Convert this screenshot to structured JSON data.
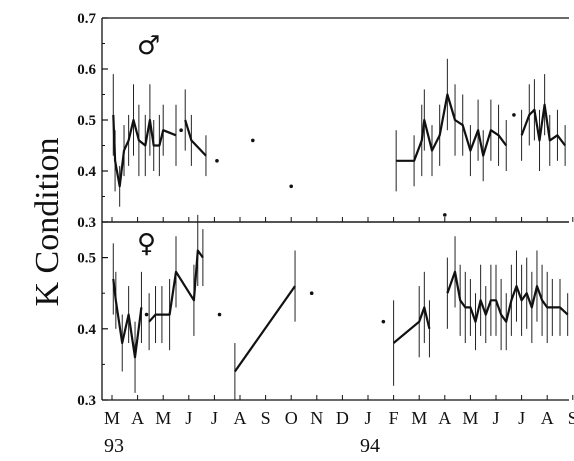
{
  "chart_data": {
    "type": "line",
    "ylabel": "K Condition",
    "x_ticks": [
      "M",
      "A",
      "M",
      "J",
      "J",
      "A",
      "S",
      "O",
      "N",
      "D",
      "J",
      "F",
      "M",
      "A",
      "M",
      "J",
      "J",
      "A",
      "S"
    ],
    "year_labels": [
      {
        "month_index": 0,
        "label": "93"
      },
      {
        "month_index": 10,
        "label": "94"
      }
    ],
    "panels": [
      {
        "symbol": "♂",
        "ylim": [
          0.3,
          0.7
        ],
        "yticks": [
          "0.3",
          "0.4",
          "0.5",
          "0.6",
          "0.7"
        ],
        "segments": [
          [
            [
              0.05,
              0.51,
              0.08
            ],
            [
              0.12,
              0.42,
              0.06
            ],
            [
              0.3,
              0.37,
              0.04
            ],
            [
              0.47,
              0.44,
              0.05
            ],
            [
              0.65,
              0.46,
              0.05
            ],
            [
              0.84,
              0.5,
              0.07
            ],
            [
              1.05,
              0.46,
              0.07
            ],
            [
              1.3,
              0.45,
              0.06
            ],
            [
              1.48,
              0.5,
              0.07
            ],
            [
              1.63,
              0.45,
              0.05
            ],
            [
              1.85,
              0.45,
              0.06
            ],
            [
              2.0,
              0.48,
              0.05
            ],
            [
              2.5,
              0.47,
              0.06
            ]
          ],
          [
            [
              2.86,
              0.5,
              0.06
            ],
            [
              3.1,
              0.46,
              0.05
            ],
            [
              3.67,
              0.43,
              0.04
            ]
          ],
          [
            [
              11.1,
              0.42,
              0.06
            ],
            [
              11.8,
              0.42,
              0.05
            ],
            [
              12.1,
              0.46,
              0.07
            ],
            [
              12.2,
              0.5,
              0.06
            ],
            [
              12.5,
              0.44,
              0.05
            ],
            [
              12.8,
              0.47,
              0.06
            ],
            [
              13.1,
              0.55,
              0.07
            ],
            [
              13.4,
              0.5,
              0.07
            ],
            [
              13.7,
              0.49,
              0.06
            ],
            [
              14.0,
              0.44,
              0.05
            ],
            [
              14.3,
              0.48,
              0.06
            ],
            [
              14.5,
              0.43,
              0.05
            ],
            [
              14.8,
              0.48,
              0.06
            ],
            [
              15.1,
              0.47,
              0.06
            ],
            [
              15.4,
              0.45,
              0.05
            ]
          ],
          [
            [
              16.0,
              0.47,
              0.05
            ],
            [
              16.3,
              0.51,
              0.06
            ],
            [
              16.5,
              0.52,
              0.06
            ],
            [
              16.7,
              0.46,
              0.06
            ],
            [
              16.9,
              0.53,
              0.06
            ],
            [
              17.1,
              0.46,
              0.05
            ],
            [
              17.4,
              0.47,
              0.05
            ],
            [
              17.7,
              0.45,
              0.04
            ]
          ]
        ],
        "points": [
          [
            2.7,
            0.48
          ],
          [
            4.1,
            0.42
          ],
          [
            5.5,
            0.46
          ],
          [
            7.0,
            0.37
          ],
          [
            15.7,
            0.51
          ]
        ]
      },
      {
        "symbol": "♀",
        "ylim": [
          0.3,
          0.55
        ],
        "yticks": [
          "0.3",
          "0.4",
          "0.5"
        ],
        "segments": [
          [
            [
              0.05,
              0.47,
              0.05
            ],
            [
              0.15,
              0.44,
              0.04
            ],
            [
              0.4,
              0.38,
              0.04
            ],
            [
              0.65,
              0.42,
              0.04
            ],
            [
              0.9,
              0.36,
              0.05
            ],
            [
              1.15,
              0.43,
              0.05
            ]
          ],
          [
            [
              1.45,
              0.41,
              0.04
            ],
            [
              1.7,
              0.42,
              0.04
            ],
            [
              1.95,
              0.42,
              0.04
            ],
            [
              2.25,
              0.42,
              0.05
            ],
            [
              2.5,
              0.48,
              0.05
            ],
            [
              3.2,
              0.44,
              0.05
            ],
            [
              3.35,
              0.51,
              0.05
            ],
            [
              3.55,
              0.5,
              0.04
            ]
          ],
          [
            [
              4.8,
              0.34,
              0.04
            ],
            [
              7.15,
              0.46,
              0.05
            ]
          ],
          [
            [
              11.0,
              0.38,
              0.06
            ],
            [
              12.0,
              0.41,
              0.05
            ],
            [
              12.2,
              0.43,
              0.05
            ],
            [
              12.4,
              0.4,
              0.04
            ]
          ],
          [
            [
              13.1,
              0.45,
              0.05
            ],
            [
              13.4,
              0.48,
              0.05
            ],
            [
              13.6,
              0.44,
              0.05
            ],
            [
              13.8,
              0.43,
              0.05
            ],
            [
              14.0,
              0.43,
              0.04
            ],
            [
              14.2,
              0.41,
              0.04
            ],
            [
              14.4,
              0.44,
              0.05
            ],
            [
              14.6,
              0.42,
              0.04
            ],
            [
              14.8,
              0.44,
              0.05
            ],
            [
              15.0,
              0.44,
              0.05
            ],
            [
              15.2,
              0.42,
              0.05
            ],
            [
              15.4,
              0.41,
              0.04
            ],
            [
              15.6,
              0.44,
              0.05
            ],
            [
              15.8,
              0.46,
              0.05
            ],
            [
              16.0,
              0.44,
              0.05
            ],
            [
              16.2,
              0.45,
              0.05
            ],
            [
              16.4,
              0.43,
              0.05
            ],
            [
              16.6,
              0.46,
              0.05
            ],
            [
              16.8,
              0.44,
              0.05
            ],
            [
              17.0,
              0.43,
              0.05
            ],
            [
              17.2,
              0.43,
              0.04
            ],
            [
              17.5,
              0.43,
              0.04
            ],
            [
              17.8,
              0.42,
              0.03
            ]
          ]
        ],
        "points": [
          [
            1.35,
            0.42
          ],
          [
            4.2,
            0.42
          ],
          [
            7.8,
            0.45
          ],
          [
            10.6,
            0.41
          ],
          [
            13.0,
            0.56
          ]
        ]
      }
    ]
  }
}
